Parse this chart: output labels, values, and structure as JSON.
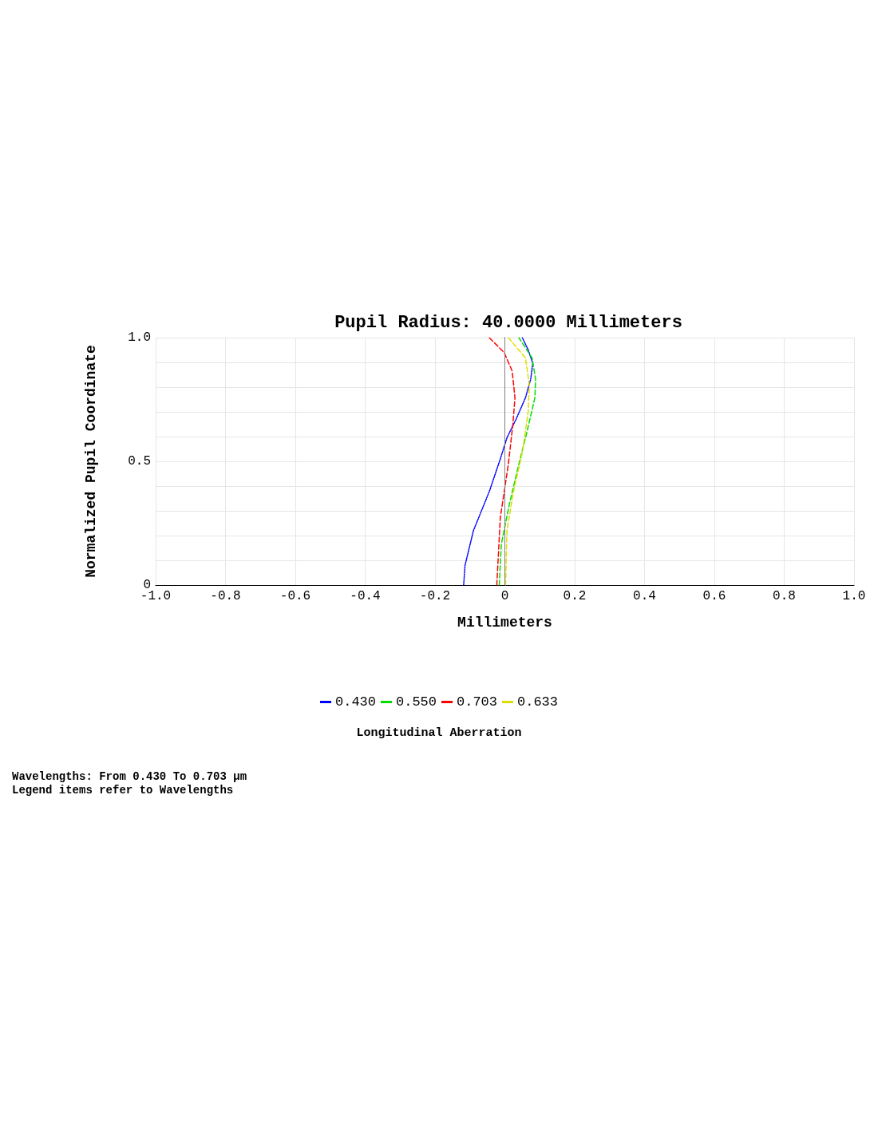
{
  "chart_data": {
    "type": "line",
    "title": "Pupil Radius: 40.0000 Millimeters",
    "xlabel": "Millimeters",
    "ylabel": "Normalized Pupil Coordinate",
    "annotations": [
      "Longitudinal Aberration",
      "Wavelengths: From 0.430 To 0.703 µm",
      "Legend items refer to Wavelengths"
    ],
    "xlim": [
      -1,
      1
    ],
    "xticks": [
      {
        "value": -1,
        "label": "-1.0"
      },
      -0.8,
      -0.6,
      -0.4,
      -0.2,
      0,
      0.2,
      0.4,
      0.6,
      0.8,
      {
        "value": 1,
        "label": "1.0"
      }
    ],
    "ylim": [
      0,
      1
    ],
    "yticks": [
      0,
      {
        "value": 0.1,
        "label": null
      },
      {
        "value": 0.2,
        "label": null
      },
      {
        "value": 0.3,
        "label": null
      },
      {
        "value": 0.4,
        "label": null
      },
      0.5,
      {
        "value": 0.6,
        "label": null
      },
      {
        "value": 0.7,
        "label": null
      },
      {
        "value": 0.8,
        "label": null
      },
      {
        "value": 0.9,
        "label": null
      },
      {
        "value": 1,
        "label": "1.0"
      }
    ],
    "grid": true,
    "legend": "bottom",
    "marker": "none",
    "ref_lines": [
      {
        "axis": "x",
        "value": 0,
        "color": "#808080"
      }
    ],
    "series": [
      {
        "name": "0.430",
        "color": "#0000ff",
        "line_style": "dotted",
        "x": [
          -0.118,
          -0.114,
          -0.09,
          -0.044,
          -0.013,
          0.006,
          0.032,
          0.059,
          0.074,
          0.08,
          0.067,
          0.05
        ],
        "values": [
          0,
          0.08,
          0.22,
          0.38,
          0.51,
          0.595,
          0.67,
          0.757,
          0.832,
          0.897,
          0.95,
          1
        ]
      },
      {
        "name": "0.550",
        "color": "#00dd00",
        "line_style": "dashed",
        "x": [
          -0.016,
          -0.01,
          0.013,
          0.04,
          0.063,
          0.086,
          0.088,
          0.078,
          0.04
        ],
        "values": [
          0,
          0.166,
          0.327,
          0.488,
          0.617,
          0.757,
          0.832,
          0.918,
          1
        ]
      },
      {
        "name": "0.703",
        "color": "#ff0000",
        "line_style": "dashed",
        "x": [
          -0.023,
          -0.013,
          0.01,
          0.023,
          0.029,
          0.021,
          -0.002,
          -0.045
        ],
        "values": [
          0,
          0.273,
          0.488,
          0.65,
          0.757,
          0.865,
          0.94,
          1
        ]
      },
      {
        "name": "0.633",
        "color": "#dddd00",
        "line_style": "dashed",
        "x": [
          0.002,
          0.006,
          0.025,
          0.051,
          0.067,
          0.07,
          0.059,
          0.01
        ],
        "values": [
          0,
          0.22,
          0.38,
          0.542,
          0.703,
          0.81,
          0.918,
          1
        ]
      }
    ]
  }
}
